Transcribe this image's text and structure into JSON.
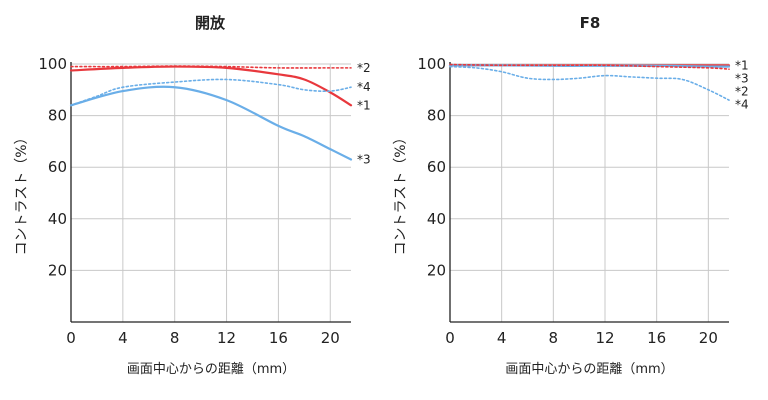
{
  "chart_data": [
    {
      "type": "line",
      "title": "開放",
      "xlabel": "画面中心からの距離（mm）",
      "ylabel": "コントラスト（%）",
      "xlim": [
        0,
        21.6
      ],
      "ylim": [
        0,
        100
      ],
      "xticks": [
        0,
        4,
        8,
        12,
        16,
        20
      ],
      "yticks": [
        20,
        40,
        60,
        80,
        100
      ],
      "grid": true,
      "series": [
        {
          "name": "*1",
          "color": "#e8383d",
          "style": "solid",
          "x": [
            0,
            4,
            8,
            12,
            16,
            18,
            20,
            21.6
          ],
          "y": [
            97.5,
            98.5,
            99,
            98.5,
            96,
            94,
            89,
            84
          ]
        },
        {
          "name": "*2",
          "color": "#e8383d",
          "style": "dotted",
          "x": [
            0,
            4,
            8,
            12,
            16,
            20,
            21.6
          ],
          "y": [
            99,
            99,
            99.2,
            99,
            98.5,
            98.5,
            98.5
          ]
        },
        {
          "name": "*3",
          "color": "#6aaee8",
          "style": "solid",
          "x": [
            0,
            4,
            8,
            12,
            16,
            18,
            20,
            21.6
          ],
          "y": [
            84,
            89.5,
            91,
            86,
            76,
            72,
            67,
            63
          ]
        },
        {
          "name": "*4",
          "color": "#6aaee8",
          "style": "dotted",
          "x": [
            0,
            2,
            4,
            8,
            12,
            16,
            18,
            20,
            21.6
          ],
          "y": [
            84,
            87.5,
            91,
            93,
            94,
            92,
            90,
            89.5,
            91
          ]
        }
      ]
    },
    {
      "type": "line",
      "title": "F8",
      "xlabel": "画面中心からの距離（mm）",
      "ylabel": "コントラスト（%）",
      "xlim": [
        0,
        21.6
      ],
      "ylim": [
        0,
        100
      ],
      "xticks": [
        0,
        4,
        8,
        12,
        16,
        20
      ],
      "yticks": [
        20,
        40,
        60,
        80,
        100
      ],
      "grid": true,
      "series": [
        {
          "name": "*1",
          "color": "#e8383d",
          "style": "solid",
          "x": [
            0,
            4,
            8,
            12,
            16,
            20,
            21.6
          ],
          "y": [
            99.5,
            99.5,
            99.5,
            99.5,
            99.5,
            99.5,
            99.5
          ]
        },
        {
          "name": "*3",
          "color": "#6aaee8",
          "style": "solid",
          "x": [
            0,
            4,
            8,
            12,
            16,
            20,
            21.6
          ],
          "y": [
            99.5,
            99.5,
            99.3,
            99.3,
            99.3,
            99,
            99
          ]
        },
        {
          "name": "*2",
          "color": "#e8383d",
          "style": "dotted",
          "x": [
            0,
            4,
            8,
            12,
            16,
            20,
            21.6
          ],
          "y": [
            99.8,
            99.5,
            99.5,
            99.5,
            99,
            98.5,
            98
          ]
        },
        {
          "name": "*4",
          "color": "#6aaee8",
          "style": "dotted",
          "x": [
            0,
            2,
            4,
            6,
            8,
            10,
            12,
            14,
            16,
            18,
            20,
            21.6
          ],
          "y": [
            99,
            98.5,
            97,
            94.5,
            94,
            94.5,
            95.5,
            95,
            94.5,
            94,
            90,
            86
          ]
        }
      ]
    }
  ]
}
